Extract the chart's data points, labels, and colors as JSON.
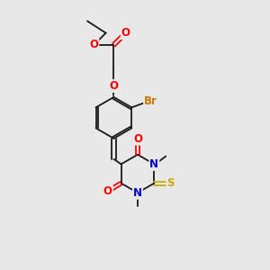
{
  "bg_color": "#e8e8e8",
  "atom_colors": {
    "O": "#ff0000",
    "N": "#0000cc",
    "S": "#ccaa00",
    "Br": "#cc7700",
    "C": "#1a1a1a"
  },
  "font_size_atom": 8.5
}
